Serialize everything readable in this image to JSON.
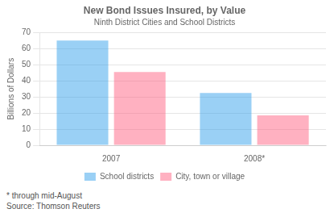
{
  "chart_data": {
    "type": "bar",
    "title": "New Bond Issues Insured, by Value",
    "subtitle": "Ninth District Cities and School Districts",
    "ylabel": "Billions of Dollars",
    "categories": [
      "2007",
      "2008*"
    ],
    "series": [
      {
        "name": "School districts",
        "values": [
          65,
          32.5
        ]
      },
      {
        "name": "City, town or village",
        "values": [
          45.5,
          18.5
        ]
      }
    ],
    "ylim": [
      0,
      70
    ],
    "yticks": [
      0,
      10,
      20,
      30,
      40,
      50,
      60,
      70
    ],
    "grid": true,
    "legend": "bottom",
    "footnote": "* through mid-August\nSource: Thomson Reuters"
  }
}
